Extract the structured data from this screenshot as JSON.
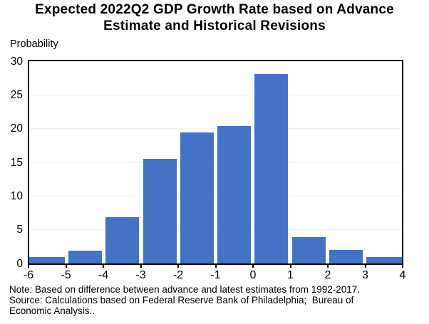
{
  "chart_data": {
    "type": "bar",
    "title": "Expected 2022Q2 GDP Growth Rate based on Advance Estimate and Historical Revisions",
    "title_lines": {
      "line1": "Expected 2022Q2 GDP Growth Rate based on Advance",
      "line2": "Estimate and Historical Revisions"
    },
    "ylabel": "Probability",
    "xlabel": "",
    "categories": [
      "-6 to -5",
      "-5 to -4",
      "-4 to -3",
      "-3 to -2",
      "-2 to -1",
      "-1 to 0",
      "0 to 1",
      "1 to 2",
      "2 to 3",
      "3 to 4"
    ],
    "values": [
      1.0,
      1.9,
      6.9,
      15.5,
      19.4,
      20.4,
      28.1,
      3.9,
      2.0,
      1.0
    ],
    "x_tick_labels": [
      "-6",
      "-5",
      "-4",
      "-3",
      "-2",
      "-1",
      "0",
      "1",
      "2",
      "3",
      "4"
    ],
    "y_ticks": [
      0,
      5,
      10,
      15,
      20,
      25,
      30
    ],
    "xlim": [
      -6,
      4
    ],
    "ylim": [
      0,
      30
    ],
    "grid": "horizontal-light",
    "legend": "none",
    "bar_color": "#4472C4",
    "gridline_color": "#f0f0f0",
    "axis_color": "#000000"
  },
  "notes": {
    "line1": "Note: Based on difference between advance and latest estimates from 1992-2017.",
    "line2": "Source: Calculations based on Federal Reserve Bank of Philadelphia;  Bureau of",
    "line3": "Economic Analysis.."
  }
}
